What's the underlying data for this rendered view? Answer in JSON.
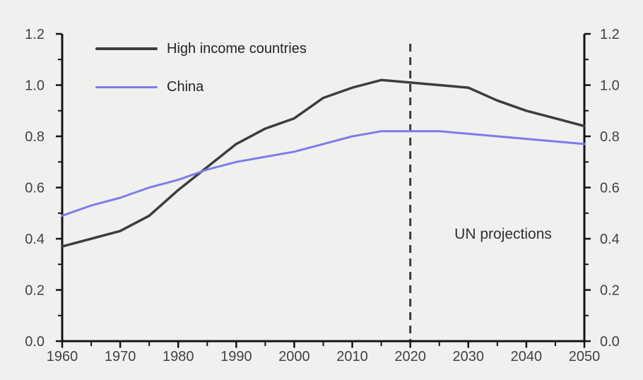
{
  "canvas": {
    "background": "#f0f0ee"
  },
  "chart_data": {
    "type": "line",
    "title": "",
    "xlabel": "",
    "ylabel": "",
    "x": [
      1960,
      1965,
      1970,
      1975,
      1980,
      1985,
      1990,
      1995,
      2000,
      2005,
      2010,
      2015,
      2020,
      2025,
      2030,
      2035,
      2040,
      2045,
      2050
    ],
    "series": [
      {
        "name": "High income countries",
        "color": "#3d3d3d",
        "stroke_width": 3.5,
        "values": [
          0.37,
          0.4,
          0.43,
          0.49,
          0.59,
          0.68,
          0.77,
          0.83,
          0.87,
          0.95,
          0.99,
          1.02,
          1.01,
          1.0,
          0.99,
          0.94,
          0.9,
          0.87,
          0.84
        ]
      },
      {
        "name": "China",
        "color": "#7b7cec",
        "stroke_width": 3,
        "values": [
          0.49,
          0.53,
          0.56,
          0.6,
          0.63,
          0.67,
          0.7,
          0.72,
          0.74,
          0.77,
          0.8,
          0.82,
          0.82,
          0.82,
          0.81,
          0.8,
          0.79,
          0.78,
          0.77
        ]
      }
    ],
    "xlim": [
      1960,
      2050
    ],
    "ylim": [
      0.0,
      1.2
    ],
    "x_ticks": [
      1960,
      1970,
      1980,
      1990,
      2000,
      2010,
      2020,
      2030,
      2040,
      2050
    ],
    "x_tick_labels": [
      "1960",
      "1970",
      "1980",
      "1990",
      "2000",
      "2010",
      "2020",
      "2030",
      "2040",
      "2050"
    ],
    "x_minor_step": 5,
    "y_ticks": [
      0.0,
      0.2,
      0.4,
      0.6,
      0.8,
      1.0,
      1.2
    ],
    "y_tick_labels": [
      "0.0",
      "0.2",
      "0.4",
      "0.6",
      "0.8",
      "1.0",
      "1.2"
    ],
    "y_minor_step": 0.1,
    "dual_y_axis": true,
    "grid": false,
    "axis_color": "#141414",
    "tick_label_color": "#424242",
    "legend": {
      "position": "top-left",
      "entries": [
        "High income countries",
        "China"
      ]
    },
    "vline": {
      "x": 2020,
      "style": "dashed",
      "color": "#3a3a3a",
      "label": "UN projections"
    },
    "annotation": {
      "text": "UN projections",
      "x": 2036,
      "y": 0.42,
      "color": "#303030"
    }
  }
}
